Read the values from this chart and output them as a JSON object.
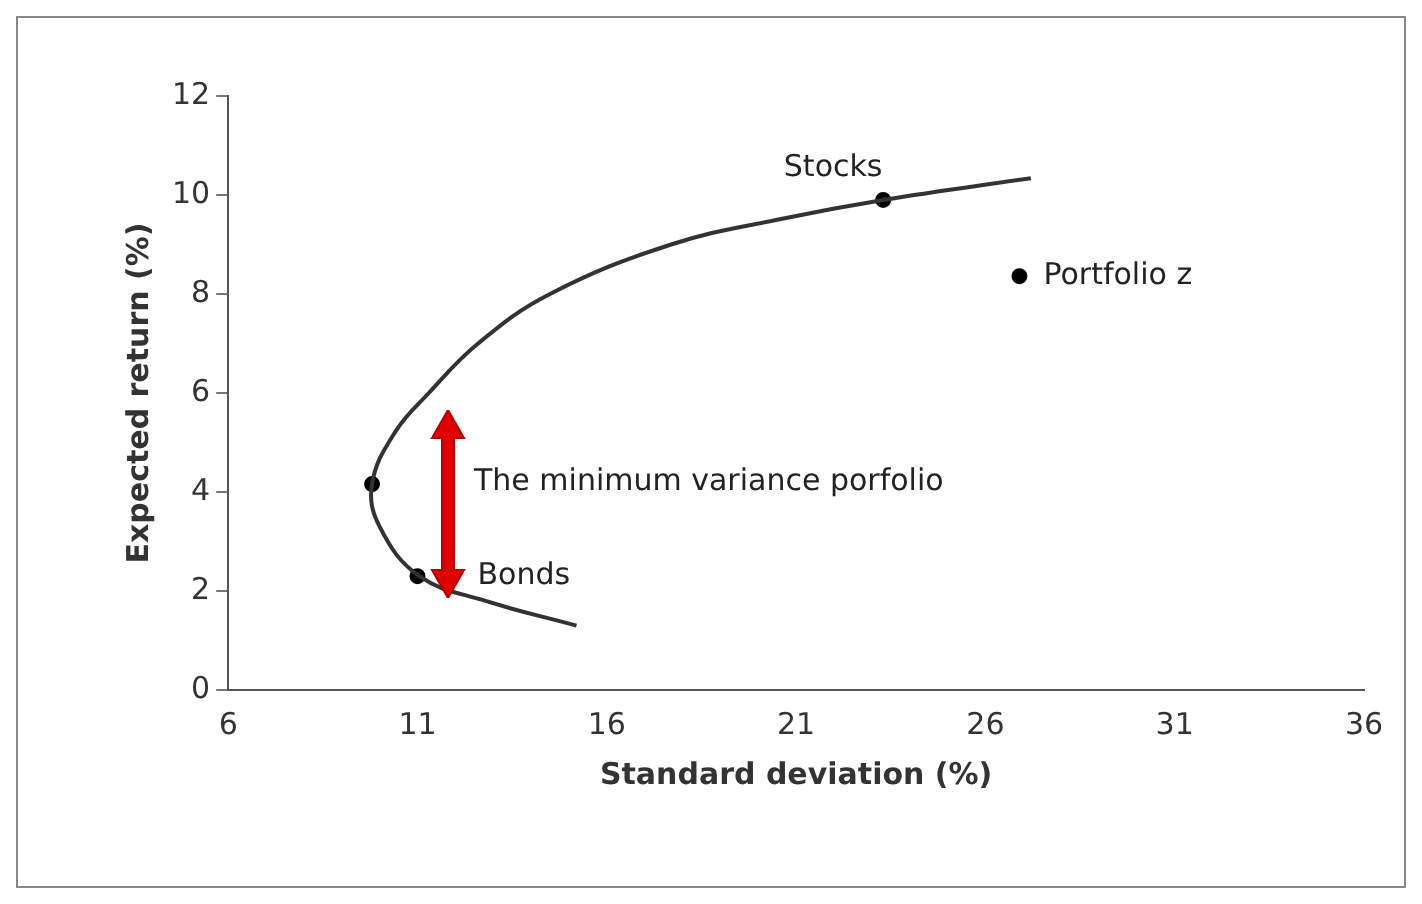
{
  "chart_data": {
    "type": "scatter",
    "xlabel": "Standard deviation (%)",
    "ylabel": "Expected return (%)",
    "xlim": [
      6,
      36
    ],
    "xticks": [
      6,
      11,
      16,
      21,
      26,
      31,
      36
    ],
    "ylim": [
      0,
      12
    ],
    "yticks": [
      0,
      2,
      4,
      6,
      8,
      10,
      12
    ],
    "grid": false,
    "legend": false,
    "marker": "circle",
    "series": [
      {
        "type": "line",
        "color": "#333333",
        "marker": "none",
        "x": [
          15.2,
          12.8,
          11.05,
          10.0,
          9.8,
          10.4,
          11.3,
          12.6,
          14.5,
          17.7,
          20.5,
          23.3,
          27.2
        ],
        "values": [
          1.3,
          1.8,
          2.3,
          3.3,
          4.16,
          5.2,
          6,
          7,
          8,
          9,
          9.5,
          9.9,
          10.34
        ]
      },
      {
        "type": "scatter",
        "color": "#000000",
        "x": [
          9.8,
          23.3,
          26.9,
          11.0
        ],
        "values": [
          4.16,
          9.9,
          8.36,
          2.3
        ]
      }
    ],
    "annotations": [
      {
        "text": "Stocks",
        "x": 23.3,
        "y": 9.9
      },
      {
        "text": "Portfolio z",
        "x": 26.9,
        "y": 8.36
      },
      "The minimum variance porfolio",
      {
        "text": "Bonds",
        "x": 11.0,
        "y": 2.3
      }
    ]
  }
}
